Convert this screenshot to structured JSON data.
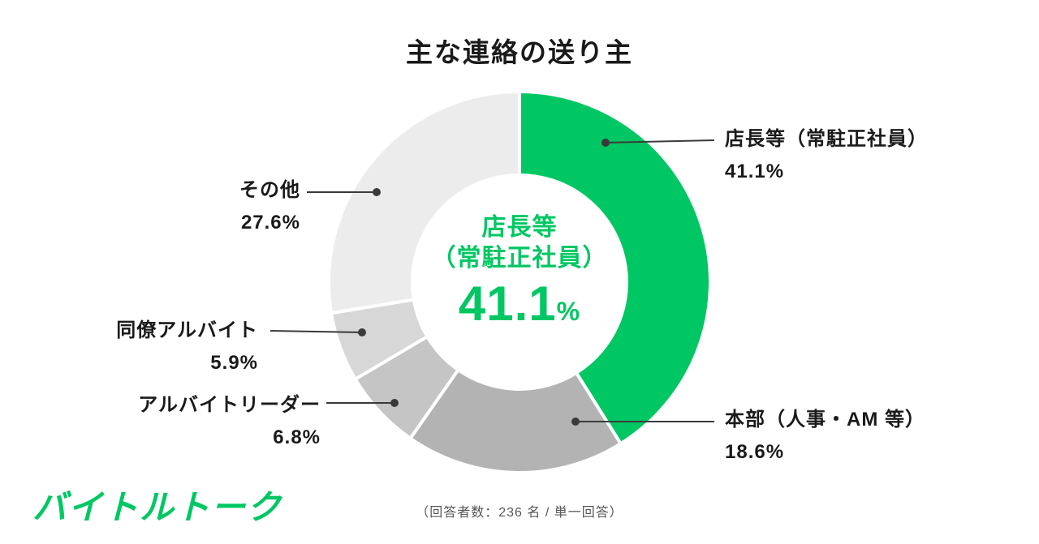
{
  "title": "主な連絡の送り主",
  "footer_note": "（回答者数：236 名 / 単一回答）",
  "logo_text": "バイトルトーク",
  "center_label": {
    "line1": "店長等",
    "line2": "（常駐正社員）",
    "value": "41.1",
    "percent_sign": "%"
  },
  "callouts": [
    {
      "label": "店長等（常駐正社員）",
      "value": "41.1%"
    },
    {
      "label": "本部（人事・AM 等）",
      "value": "18.6%"
    },
    {
      "label": "その他",
      "value": "27.6%"
    },
    {
      "label": "同僚アルバイト",
      "value": "5.9%"
    },
    {
      "label": "アルバイトリーダー",
      "value": "6.8%"
    }
  ],
  "chart_data": {
    "type": "pie",
    "donut": true,
    "title": "主な連絡の送り主",
    "categories": [
      "店長等（常駐正社員）",
      "本部（人事・AM 等）",
      "アルバイトリーダー",
      "同僚アルバイト",
      "その他"
    ],
    "values": [
      41.1,
      18.6,
      6.8,
      5.9,
      27.6
    ],
    "colors": [
      "#00c763",
      "#b3b3b3",
      "#c5c5c5",
      "#d7d7d7",
      "#ececec"
    ],
    "start_angle_deg": -90,
    "direction": "clockwise",
    "center_annotation": "店長等（常駐正社員） 41.1%",
    "sample_note": "回答者数：236 名 / 単一回答",
    "accent_color": "#00c763"
  }
}
